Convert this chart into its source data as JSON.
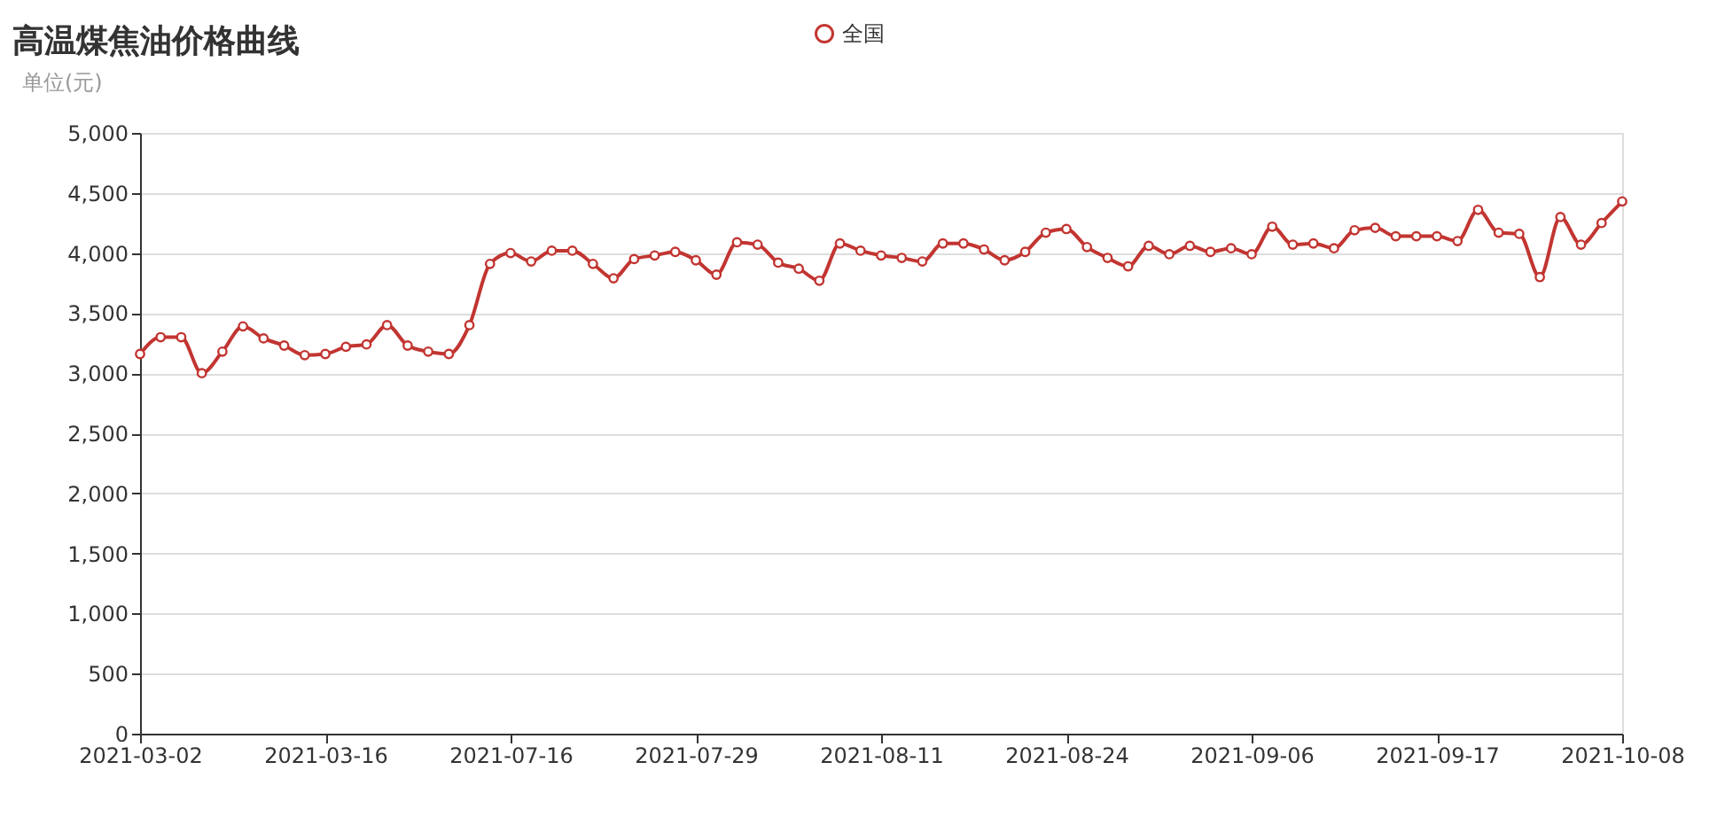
{
  "chart_data": {
    "type": "line",
    "title": "高温煤焦油价格曲线",
    "ylabel": "单位(元)",
    "categories": [
      "2021-03-02",
      null,
      null,
      null,
      null,
      null,
      null,
      null,
      null,
      "2021-03-16",
      null,
      null,
      null,
      null,
      null,
      null,
      null,
      null,
      "2021-07-16",
      null,
      null,
      null,
      null,
      null,
      null,
      null,
      null,
      "2021-07-29",
      null,
      null,
      null,
      null,
      null,
      null,
      null,
      null,
      "2021-08-11",
      null,
      null,
      null,
      null,
      null,
      null,
      null,
      null,
      "2021-08-24",
      null,
      null,
      null,
      null,
      null,
      null,
      null,
      null,
      "2021-09-06",
      null,
      null,
      null,
      null,
      null,
      null,
      null,
      null,
      "2021-09-17",
      null,
      null,
      null,
      null,
      null,
      null,
      null,
      null,
      "2021-10-08"
    ],
    "series": [
      {
        "name": "全国",
        "color": "#c23531",
        "values": [
          3160,
          3300,
          3300,
          3000,
          3180,
          3390,
          3290,
          3230,
          3150,
          3160,
          3220,
          3240,
          3400,
          3230,
          3180,
          3160,
          3400,
          3910,
          4000,
          3930,
          4020,
          4020,
          3910,
          3790,
          3950,
          3980,
          4010,
          3940,
          3820,
          4090,
          4070,
          3920,
          3870,
          3770,
          4080,
          4020,
          3980,
          3960,
          3930,
          4080,
          4080,
          4030,
          3940,
          4010,
          4170,
          4200,
          4050,
          3960,
          3890,
          4060,
          3990,
          4060,
          4010,
          4040,
          3990,
          4220,
          4070,
          4080,
          4040,
          4190,
          4210,
          4140,
          4140,
          4140,
          4100,
          4360,
          4170,
          4160,
          3800,
          4300,
          4070,
          4250,
          4430
        ]
      }
    ],
    "ylim": [
      0,
      5000
    ],
    "yticks": [
      0,
      500,
      {
        "value": 1000,
        "label": "1,000"
      },
      {
        "value": 1500,
        "label": "1,500"
      },
      {
        "value": 2000,
        "label": "2,000"
      },
      {
        "value": 2500,
        "label": "2,500"
      },
      {
        "value": 3000,
        "label": "3,000"
      },
      {
        "value": 3500,
        "label": "3,500"
      },
      {
        "value": 4000,
        "label": "4,000"
      },
      {
        "value": 4500,
        "label": "4,500"
      },
      {
        "value": 5000,
        "label": "5,000"
      }
    ],
    "grid": "y",
    "legend": "top",
    "marker": "circle",
    "line_style": "solid"
  }
}
